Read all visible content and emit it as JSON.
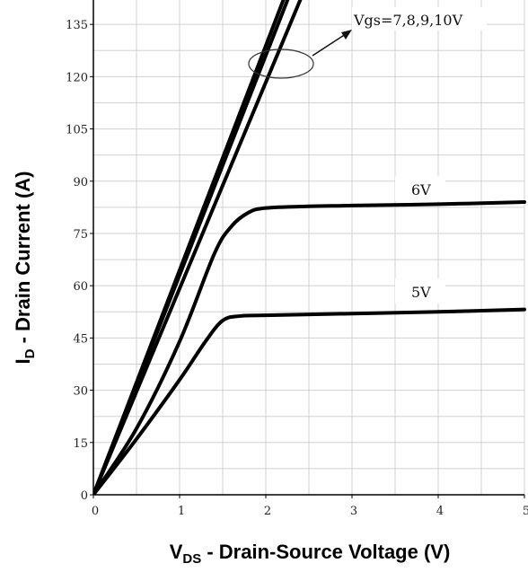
{
  "chart_data": {
    "type": "line",
    "xlabel": {
      "main": "V",
      "sub": "DS",
      "rest": " - Drain-Source Voltage (V)"
    },
    "ylabel": {
      "main": "I",
      "sub": "D",
      "rest": " - Drain Current (A)"
    },
    "xlim": [
      0,
      5
    ],
    "ylim": [
      0,
      142
    ],
    "x_ticks": [
      "0",
      "1",
      "2",
      "3",
      "4",
      "5"
    ],
    "y_ticks": [
      "0",
      "15",
      "30",
      "45",
      "60",
      "75",
      "90",
      "105",
      "120",
      "135"
    ],
    "grid": true,
    "series": [
      {
        "name": "Vgs=7,8,9,10V",
        "values": [
          [
            0,
            0
          ],
          [
            2.25,
            145
          ]
        ]
      },
      {
        "name": "Vgs=7,8,9,10V",
        "values": [
          [
            0,
            0
          ],
          [
            2.3,
            145
          ]
        ]
      },
      {
        "name": "Vgs=7,8,9,10V",
        "values": [
          [
            0,
            0
          ],
          [
            2.45,
            145
          ]
        ]
      },
      {
        "name": "6V",
        "values": [
          [
            0,
            0
          ],
          [
            0.5,
            19
          ],
          [
            1.0,
            44
          ],
          [
            1.4,
            69
          ],
          [
            1.6,
            77
          ],
          [
            1.8,
            81
          ],
          [
            2.0,
            82.3
          ],
          [
            2.5,
            82.8
          ],
          [
            3.0,
            83
          ],
          [
            4.0,
            83.4
          ],
          [
            5.0,
            84
          ]
        ]
      },
      {
        "name": "5V",
        "values": [
          [
            0,
            0
          ],
          [
            0.5,
            16
          ],
          [
            1.0,
            33
          ],
          [
            1.3,
            44
          ],
          [
            1.5,
            50
          ],
          [
            1.7,
            51.3
          ],
          [
            2.0,
            51.5
          ],
          [
            3.0,
            52
          ],
          [
            4.0,
            52.5
          ],
          [
            5.0,
            53.2
          ]
        ]
      }
    ],
    "annotations": {
      "vgs_group": "Vgs=7,8,9,10V",
      "label_6v": "6V",
      "label_5v": "5V"
    }
  }
}
